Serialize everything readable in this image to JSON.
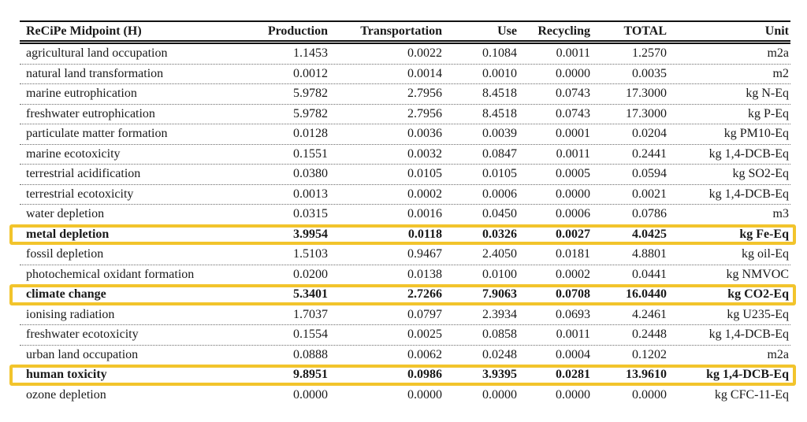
{
  "table": {
    "title": "ReCiPe Midpoint (H)",
    "highlight_color": "#F2C42C",
    "headers": [
      "ReCiPe Midpoint (H)",
      "Production",
      "Transportation",
      "Use",
      "Recycling",
      "TOTAL",
      "Unit"
    ],
    "rows": [
      {
        "name": "agricultural land occupation",
        "production": "1.1453",
        "transportation": "0.0022",
        "use": "0.1084",
        "recycling": "0.0011",
        "total": "1.2570",
        "unit": "m2a",
        "highlighted": false
      },
      {
        "name": "natural land transformation",
        "production": "0.0012",
        "transportation": "0.0014",
        "use": "0.0010",
        "recycling": "0.0000",
        "total": "0.0035",
        "unit": "m2",
        "highlighted": false
      },
      {
        "name": "marine eutrophication",
        "production": "5.9782",
        "transportation": "2.7956",
        "use": "8.4518",
        "recycling": "0.0743",
        "total": "17.3000",
        "unit": "kg N-Eq",
        "highlighted": false
      },
      {
        "name": "freshwater eutrophication",
        "production": "5.9782",
        "transportation": "2.7956",
        "use": "8.4518",
        "recycling": "0.0743",
        "total": "17.3000",
        "unit": "kg P-Eq",
        "highlighted": false
      },
      {
        "name": "particulate matter formation",
        "production": "0.0128",
        "transportation": "0.0036",
        "use": "0.0039",
        "recycling": "0.0001",
        "total": "0.0204",
        "unit": "kg PM10-Eq",
        "highlighted": false
      },
      {
        "name": "marine ecotoxicity",
        "production": "0.1551",
        "transportation": "0.0032",
        "use": "0.0847",
        "recycling": "0.0011",
        "total": "0.2441",
        "unit": "kg 1,4-DCB-Eq",
        "highlighted": false
      },
      {
        "name": "terrestrial acidification",
        "production": "0.0380",
        "transportation": "0.0105",
        "use": "0.0105",
        "recycling": "0.0005",
        "total": "0.0594",
        "unit": "kg SO2-Eq",
        "highlighted": false
      },
      {
        "name": "terrestrial ecotoxicity",
        "production": "0.0013",
        "transportation": "0.0002",
        "use": "0.0006",
        "recycling": "0.0000",
        "total": "0.0021",
        "unit": "kg 1,4-DCB-Eq",
        "highlighted": false
      },
      {
        "name": "water depletion",
        "production": "0.0315",
        "transportation": "0.0016",
        "use": "0.0450",
        "recycling": "0.0006",
        "total": "0.0786",
        "unit": "m3",
        "highlighted": false
      },
      {
        "name": "metal depletion",
        "production": "3.9954",
        "transportation": "0.0118",
        "use": "0.0326",
        "recycling": "0.0027",
        "total": "4.0425",
        "unit": "kg Fe-Eq",
        "highlighted": true
      },
      {
        "name": "fossil depletion",
        "production": "1.5103",
        "transportation": "0.9467",
        "use": "2.4050",
        "recycling": "0.0181",
        "total": "4.8801",
        "unit": "kg oil-Eq",
        "highlighted": false
      },
      {
        "name": "photochemical oxidant formation",
        "production": "0.0200",
        "transportation": "0.0138",
        "use": "0.0100",
        "recycling": "0.0002",
        "total": "0.0441",
        "unit": "kg NMVOC",
        "highlighted": false
      },
      {
        "name": "climate change",
        "production": "5.3401",
        "transportation": "2.7266",
        "use": "7.9063",
        "recycling": "0.0708",
        "total": "16.0440",
        "unit": "kg CO2-Eq",
        "highlighted": true
      },
      {
        "name": "ionising radiation",
        "production": "1.7037",
        "transportation": "0.0797",
        "use": "2.3934",
        "recycling": "0.0693",
        "total": "4.2461",
        "unit": "kg U235-Eq",
        "highlighted": false
      },
      {
        "name": "freshwater ecotoxicity",
        "production": "0.1554",
        "transportation": "0.0025",
        "use": "0.0858",
        "recycling": "0.0011",
        "total": "0.2448",
        "unit": "kg 1,4-DCB-Eq",
        "highlighted": false
      },
      {
        "name": "urban land occupation",
        "production": "0.0888",
        "transportation": "0.0062",
        "use": "0.0248",
        "recycling": "0.0004",
        "total": "0.1202",
        "unit": "m2a",
        "highlighted": false
      },
      {
        "name": "human toxicity",
        "production": "9.8951",
        "transportation": "0.0986",
        "use": "3.9395",
        "recycling": "0.0281",
        "total": "13.9610",
        "unit": "kg 1,4-DCB-Eq",
        "highlighted": true
      },
      {
        "name": "ozone depletion",
        "production": "0.0000",
        "transportation": "0.0000",
        "use": "0.0000",
        "recycling": "0.0000",
        "total": "0.0000",
        "unit": "kg CFC-11-Eq",
        "highlighted": false
      }
    ]
  }
}
